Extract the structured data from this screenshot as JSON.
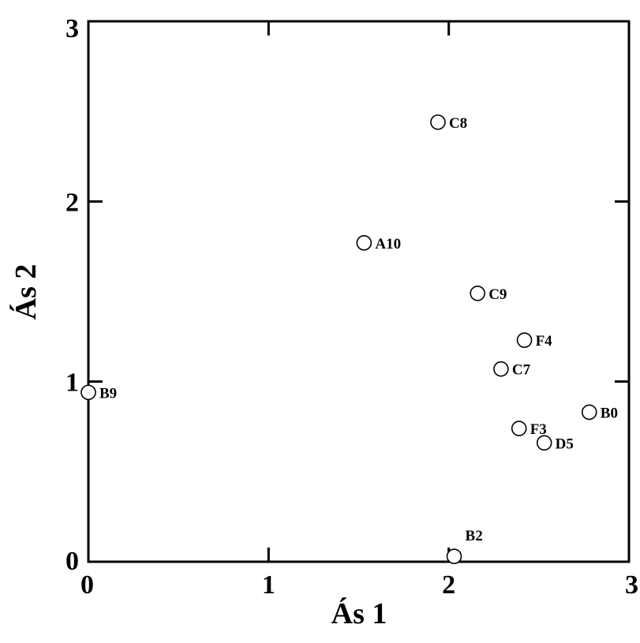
{
  "chart_data": {
    "type": "scatter",
    "xlabel": "Ás 1",
    "ylabel": "Ás 2",
    "xlim": [
      0,
      3
    ],
    "ylim": [
      0,
      3
    ],
    "xticks": [
      "0",
      "1",
      "2",
      "3"
    ],
    "yticks": [
      "0",
      "1",
      "2",
      "3"
    ],
    "grid": false,
    "marker": "open-circle",
    "points": [
      {
        "label": "C8",
        "x": 1.94,
        "y": 2.44
      },
      {
        "label": "A10",
        "x": 1.53,
        "y": 1.77
      },
      {
        "label": "C9",
        "x": 2.16,
        "y": 1.49
      },
      {
        "label": "F4",
        "x": 2.42,
        "y": 1.23
      },
      {
        "label": "C7",
        "x": 2.29,
        "y": 1.07
      },
      {
        "label": "B9",
        "x": 0.0,
        "y": 0.94
      },
      {
        "label": "B0",
        "x": 2.78,
        "y": 0.83
      },
      {
        "label": "F3",
        "x": 2.39,
        "y": 0.74
      },
      {
        "label": "D5",
        "x": 2.53,
        "y": 0.66
      },
      {
        "label": "B2",
        "x": 2.03,
        "y": 0.03
      }
    ]
  }
}
